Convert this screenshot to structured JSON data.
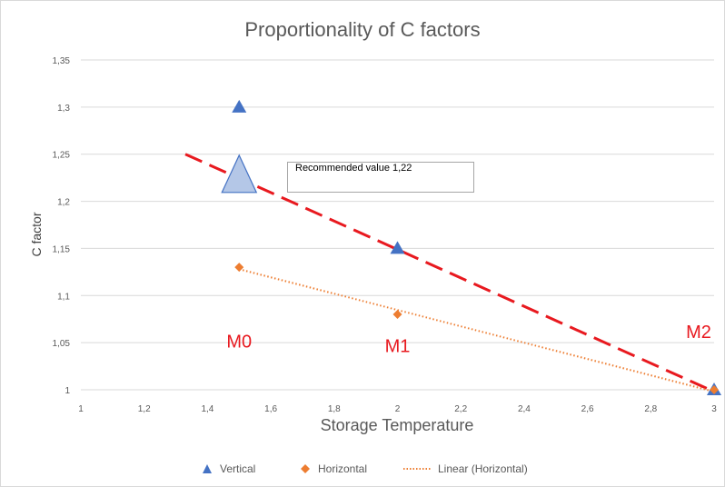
{
  "chart_data": {
    "type": "scatter",
    "title": "Proportionality of C factors",
    "xlabel": "Storage Temperature",
    "ylabel": "C factor",
    "xlim": [
      1,
      3
    ],
    "ylim": [
      1,
      1.35
    ],
    "x_ticks": [
      "1",
      "1,2",
      "1,4",
      "1,6",
      "1,8",
      "2",
      "2,2",
      "2,4",
      "2,6",
      "2,8",
      "3"
    ],
    "y_ticks": [
      "1",
      "1,05",
      "1,1",
      "1,15",
      "1,2",
      "1,25",
      "1,3",
      "1,35"
    ],
    "grid": "horizontal",
    "legend_position": "bottom",
    "series": [
      {
        "name": "Vertical",
        "marker": "triangle",
        "color": "#4472c4",
        "x": [
          1.5,
          2,
          3
        ],
        "y": [
          1.3,
          1.15,
          1.0
        ]
      },
      {
        "name": "Horizontal",
        "marker": "diamond",
        "color": "#ed7d31",
        "x": [
          1.5,
          2,
          3
        ],
        "y": [
          1.13,
          1.08,
          1.0
        ]
      },
      {
        "name": "Linear (Horizontal)",
        "style": "dotted",
        "color": "#ed7d31",
        "x": [
          1.5,
          3
        ],
        "y": [
          1.128,
          0.998
        ]
      }
    ],
    "recommended": {
      "line": {
        "x": [
          1.33,
          3
        ],
        "y": [
          1.25,
          0.998
        ],
        "color": "#e8191f",
        "style": "dashed"
      },
      "marker": {
        "x": 1.5,
        "y": 1.22,
        "shape": "triangle",
        "color": "#b4c7e7"
      },
      "label": "Recommended value 1,22"
    },
    "region_labels": [
      {
        "text": "M0",
        "x": 1.5,
        "y": 1.045
      },
      {
        "text": "M1",
        "x": 2,
        "y": 1.04
      },
      {
        "text": "M2",
        "x": 3,
        "y": 1.055
      }
    ]
  }
}
